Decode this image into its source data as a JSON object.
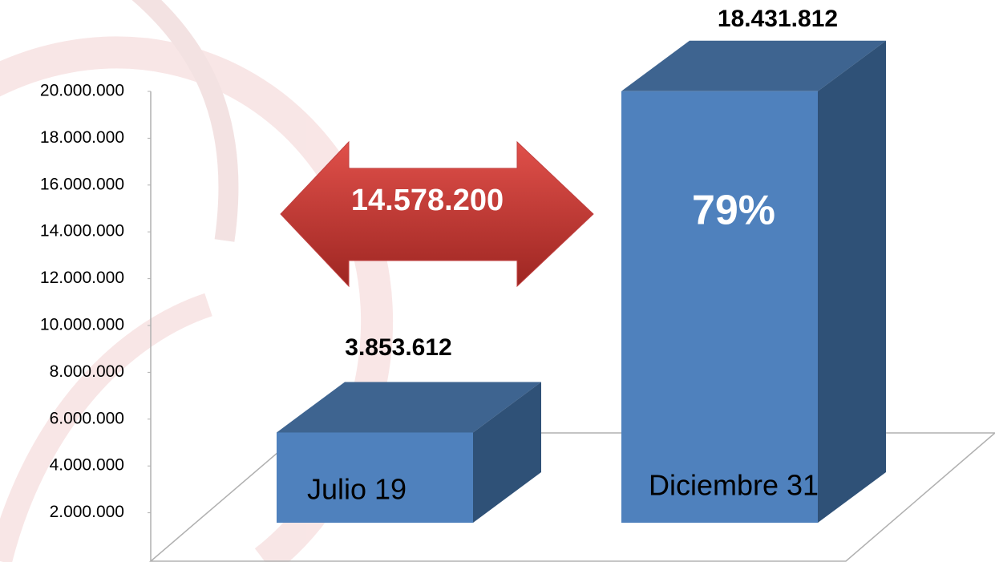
{
  "chart_data": {
    "type": "bar3d",
    "categories": [
      "Julio 19",
      "Diciembre 31"
    ],
    "values": [
      3853612,
      18431812
    ],
    "value_labels": [
      "3.853.612",
      "18.431.812"
    ],
    "color": "#4f81bd",
    "ylim": [
      0,
      20000000
    ],
    "yticks": [
      {
        "value": 2000000,
        "label": "2.000.000"
      },
      {
        "value": 4000000,
        "label": "4.000.000"
      },
      {
        "value": 6000000,
        "label": "6.000.000"
      },
      {
        "value": 8000000,
        "label": "8.000.000"
      },
      {
        "value": 10000000,
        "label": "10.000.000"
      },
      {
        "value": 12000000,
        "label": "12.000.000"
      },
      {
        "value": 14000000,
        "label": "14.000.000"
      },
      {
        "value": 16000000,
        "label": "16.000.000"
      },
      {
        "value": 18000000,
        "label": "18.000.000"
      },
      {
        "value": 20000000,
        "label": "20.000.000"
      }
    ],
    "annotations": [
      "14.578.200",
      "79%"
    ]
  }
}
